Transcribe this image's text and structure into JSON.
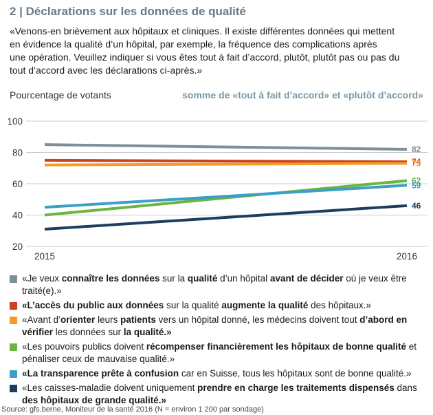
{
  "header": {
    "title": "2 | Déclarations sur les données de qualité",
    "intro_lines": [
      "«Venons-en brièvement aux hôpitaux et cliniques. Il existe différentes données qui mettent",
      "en évidence la qualité d’un hôpital, par exemple, la fréquence des complications après",
      "une opération. Veuillez indiquer si vous êtes tout à fait d’accord, plutôt, plutôt pas ou pas du",
      "tout d’accord avec les déclarations ci-après.»"
    ]
  },
  "chart_data": {
    "type": "line",
    "ylabel": "Pourcentage de votants",
    "subtitle": "somme de «tout à fait d’accord» et «plutôt d’accord»",
    "x": [
      "2015",
      "2016"
    ],
    "ylim": [
      20,
      100
    ],
    "yticks": [
      20,
      40,
      60,
      80,
      100
    ],
    "grid": true,
    "series": [
      {
        "values": [
          85,
          82
        ],
        "label": "82",
        "color": "#7f8f99"
      },
      {
        "values": [
          75,
          74
        ],
        "label": "74",
        "color": "#c8441f"
      },
      {
        "values": [
          72,
          73
        ],
        "label": "73",
        "color": "#f39c28"
      },
      {
        "values": [
          40,
          62
        ],
        "label": "62",
        "color": "#6cb33f"
      },
      {
        "values": [
          45,
          59
        ],
        "label": "59",
        "color": "#3aa0c8"
      },
      {
        "values": [
          31,
          46
        ],
        "label": "46",
        "color": "#1d3e5e"
      }
    ]
  },
  "legend": [
    {
      "color": "#7f8f99",
      "parts": [
        [
          "«Je veux ",
          false
        ],
        [
          "connaître les données",
          true
        ],
        [
          " sur la ",
          false
        ],
        [
          "qualité",
          true
        ],
        [
          " d’un hôpital ",
          false
        ],
        [
          "avant de décider",
          true
        ],
        [
          " où je veux être traité(e).»",
          false
        ]
      ]
    },
    {
      "color": "#c8441f",
      "parts": [
        [
          "«L’accès du public aux données",
          true
        ],
        [
          " sur la qualité ",
          false
        ],
        [
          "augmente la qualité",
          true
        ],
        [
          " des hôpitaux.»",
          false
        ]
      ]
    },
    {
      "color": "#f39c28",
      "parts": [
        [
          "«Avant d’",
          false
        ],
        [
          "orienter",
          true
        ],
        [
          " leurs ",
          false
        ],
        [
          "patients",
          true
        ],
        [
          " vers un hôpital donné, les médecins doivent tout ",
          false
        ],
        [
          "d’abord en vérifier",
          true
        ],
        [
          " les données sur ",
          false
        ],
        [
          "la qualité.»",
          true
        ]
      ]
    },
    {
      "color": "#6cb33f",
      "parts": [
        [
          "«Les pouvoirs publics doivent ",
          false
        ],
        [
          "récompenser financièrement les hôpitaux de bonne qualité",
          true
        ],
        [
          " et pénaliser ceux de mauvaise qualité.»",
          false
        ]
      ]
    },
    {
      "color": "#3aa0c8",
      "parts": [
        [
          "«La transparence prête à confusion",
          true
        ],
        [
          " car en Suisse, tous les hôpitaux sont de bonne qualité.»",
          false
        ]
      ]
    },
    {
      "color": "#1d3e5e",
      "parts": [
        [
          "«Les caisses-maladie doivent uniquement ",
          false
        ],
        [
          "prendre en charge les traitements dispensés",
          true
        ],
        [
          " dans ",
          false
        ],
        [
          "des hôpitaux de grande qualité.»",
          true
        ]
      ]
    }
  ],
  "footer": {
    "source": "Source: gfs.berne, Moniteur de la santé 2016 (N = environ 1 200 par sondage)"
  }
}
